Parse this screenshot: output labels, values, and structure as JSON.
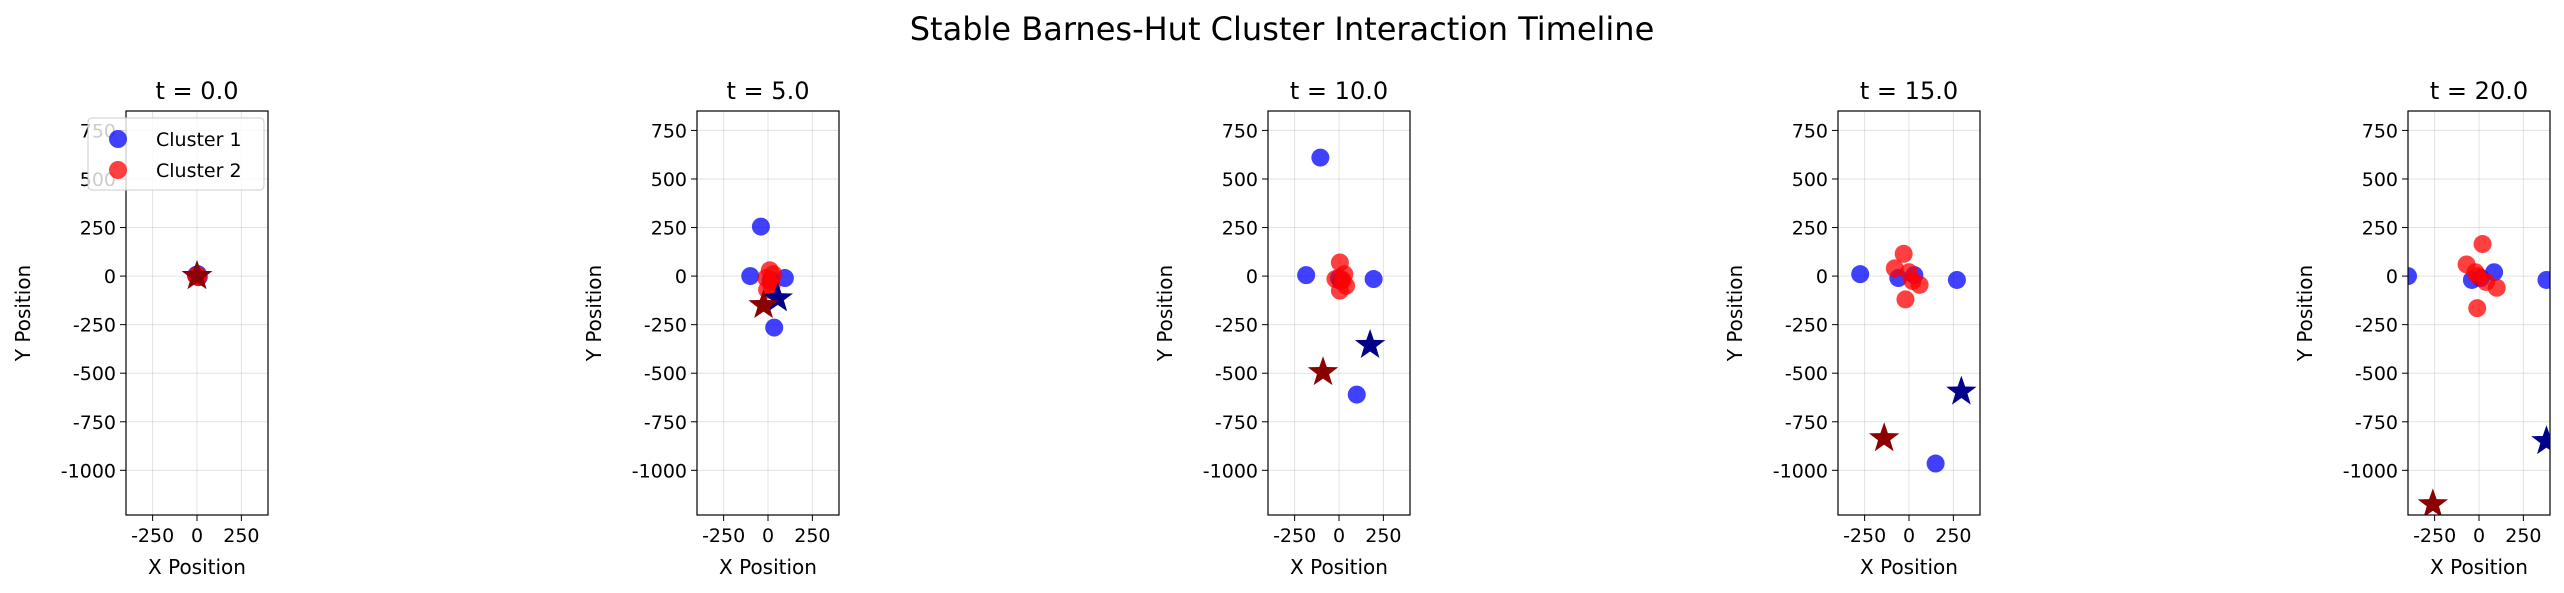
{
  "chart_data": {
    "type": "scatter",
    "title": "Stable Barnes-Hut Cluster Interaction Timeline",
    "xlim": [
      -400,
      400
    ],
    "ylim": [
      -1230,
      850
    ],
    "xticks": [
      -250,
      0,
      250
    ],
    "yticks": [
      750,
      500,
      250,
      0,
      -250,
      -500,
      -750,
      -1000
    ],
    "grid": true,
    "legend": {
      "placement": "upper-left",
      "panel": 0,
      "entries": [
        "Cluster 1",
        "Cluster 2"
      ]
    },
    "colors": {
      "cluster1": "#0000ff",
      "cluster2": "#ff0000",
      "center1": "#00008b",
      "center2": "#8b0000"
    },
    "panels": [
      {
        "title": "t = 0.0",
        "xlabel": "X Position",
        "ylabel": "Y Position",
        "cluster1": [
          [
            0,
            0
          ],
          [
            10,
            -5
          ],
          [
            -5,
            5
          ],
          [
            5,
            10
          ]
        ],
        "cluster2": [
          [
            0,
            0
          ],
          [
            5,
            -5
          ],
          [
            -5,
            0
          ],
          [
            3,
            3
          ]
        ],
        "center1": [
          0,
          0
        ],
        "center2": [
          0,
          0
        ]
      },
      {
        "title": "t = 5.0",
        "xlabel": "X Position",
        "ylabel": "Y Position",
        "cluster1": [
          [
            -40,
            255
          ],
          [
            -100,
            0
          ],
          [
            95,
            -10
          ],
          [
            35,
            -265
          ],
          [
            15,
            -20
          ]
        ],
        "cluster2": [
          [
            10,
            30
          ],
          [
            30,
            10
          ],
          [
            -10,
            -10
          ],
          [
            15,
            -30
          ],
          [
            -5,
            -70
          ],
          [
            20,
            -50
          ]
        ],
        "center1": [
          55,
          -115
        ],
        "center2": [
          -25,
          -150
        ]
      },
      {
        "title": "t = 10.0",
        "xlabel": "X Position",
        "ylabel": "Y Position",
        "cluster1": [
          [
            -105,
            610
          ],
          [
            -185,
            5
          ],
          [
            195,
            -15
          ],
          [
            100,
            -610
          ],
          [
            0,
            -10
          ],
          [
            10,
            -25
          ]
        ],
        "cluster2": [
          [
            5,
            70
          ],
          [
            30,
            10
          ],
          [
            -20,
            -15
          ],
          [
            40,
            -50
          ],
          [
            5,
            -75
          ],
          [
            20,
            -20
          ]
        ],
        "center1": [
          175,
          -355
        ],
        "center2": [
          -90,
          -495
        ]
      },
      {
        "title": "t = 15.0",
        "xlabel": "X Position",
        "ylabel": "Y Position",
        "cluster1": [
          [
            -275,
            10
          ],
          [
            -60,
            -10
          ],
          [
            270,
            -20
          ],
          [
            150,
            -965
          ],
          [
            30,
            5
          ]
        ],
        "cluster2": [
          [
            -30,
            115
          ],
          [
            -80,
            40
          ],
          [
            0,
            20
          ],
          [
            60,
            -45
          ],
          [
            -20,
            -120
          ],
          [
            20,
            -25
          ]
        ],
        "center1": [
          295,
          -595
        ],
        "center2": [
          -140,
          -835
        ]
      },
      {
        "title": "t = 20.0",
        "xlabel": "X Position",
        "ylabel": "Y Position",
        "cluster1": [
          [
            -400,
            0
          ],
          [
            -40,
            -20
          ],
          [
            85,
            20
          ],
          [
            380,
            -20
          ],
          [
            10,
            -10
          ]
        ],
        "cluster2": [
          [
            20,
            165
          ],
          [
            -70,
            60
          ],
          [
            -20,
            20
          ],
          [
            100,
            -60
          ],
          [
            -10,
            -165
          ],
          [
            40,
            -30
          ],
          [
            -5,
            0
          ]
        ],
        "center1": [
          380,
          -850
        ],
        "center2": [
          -260,
          -1175
        ]
      }
    ]
  }
}
